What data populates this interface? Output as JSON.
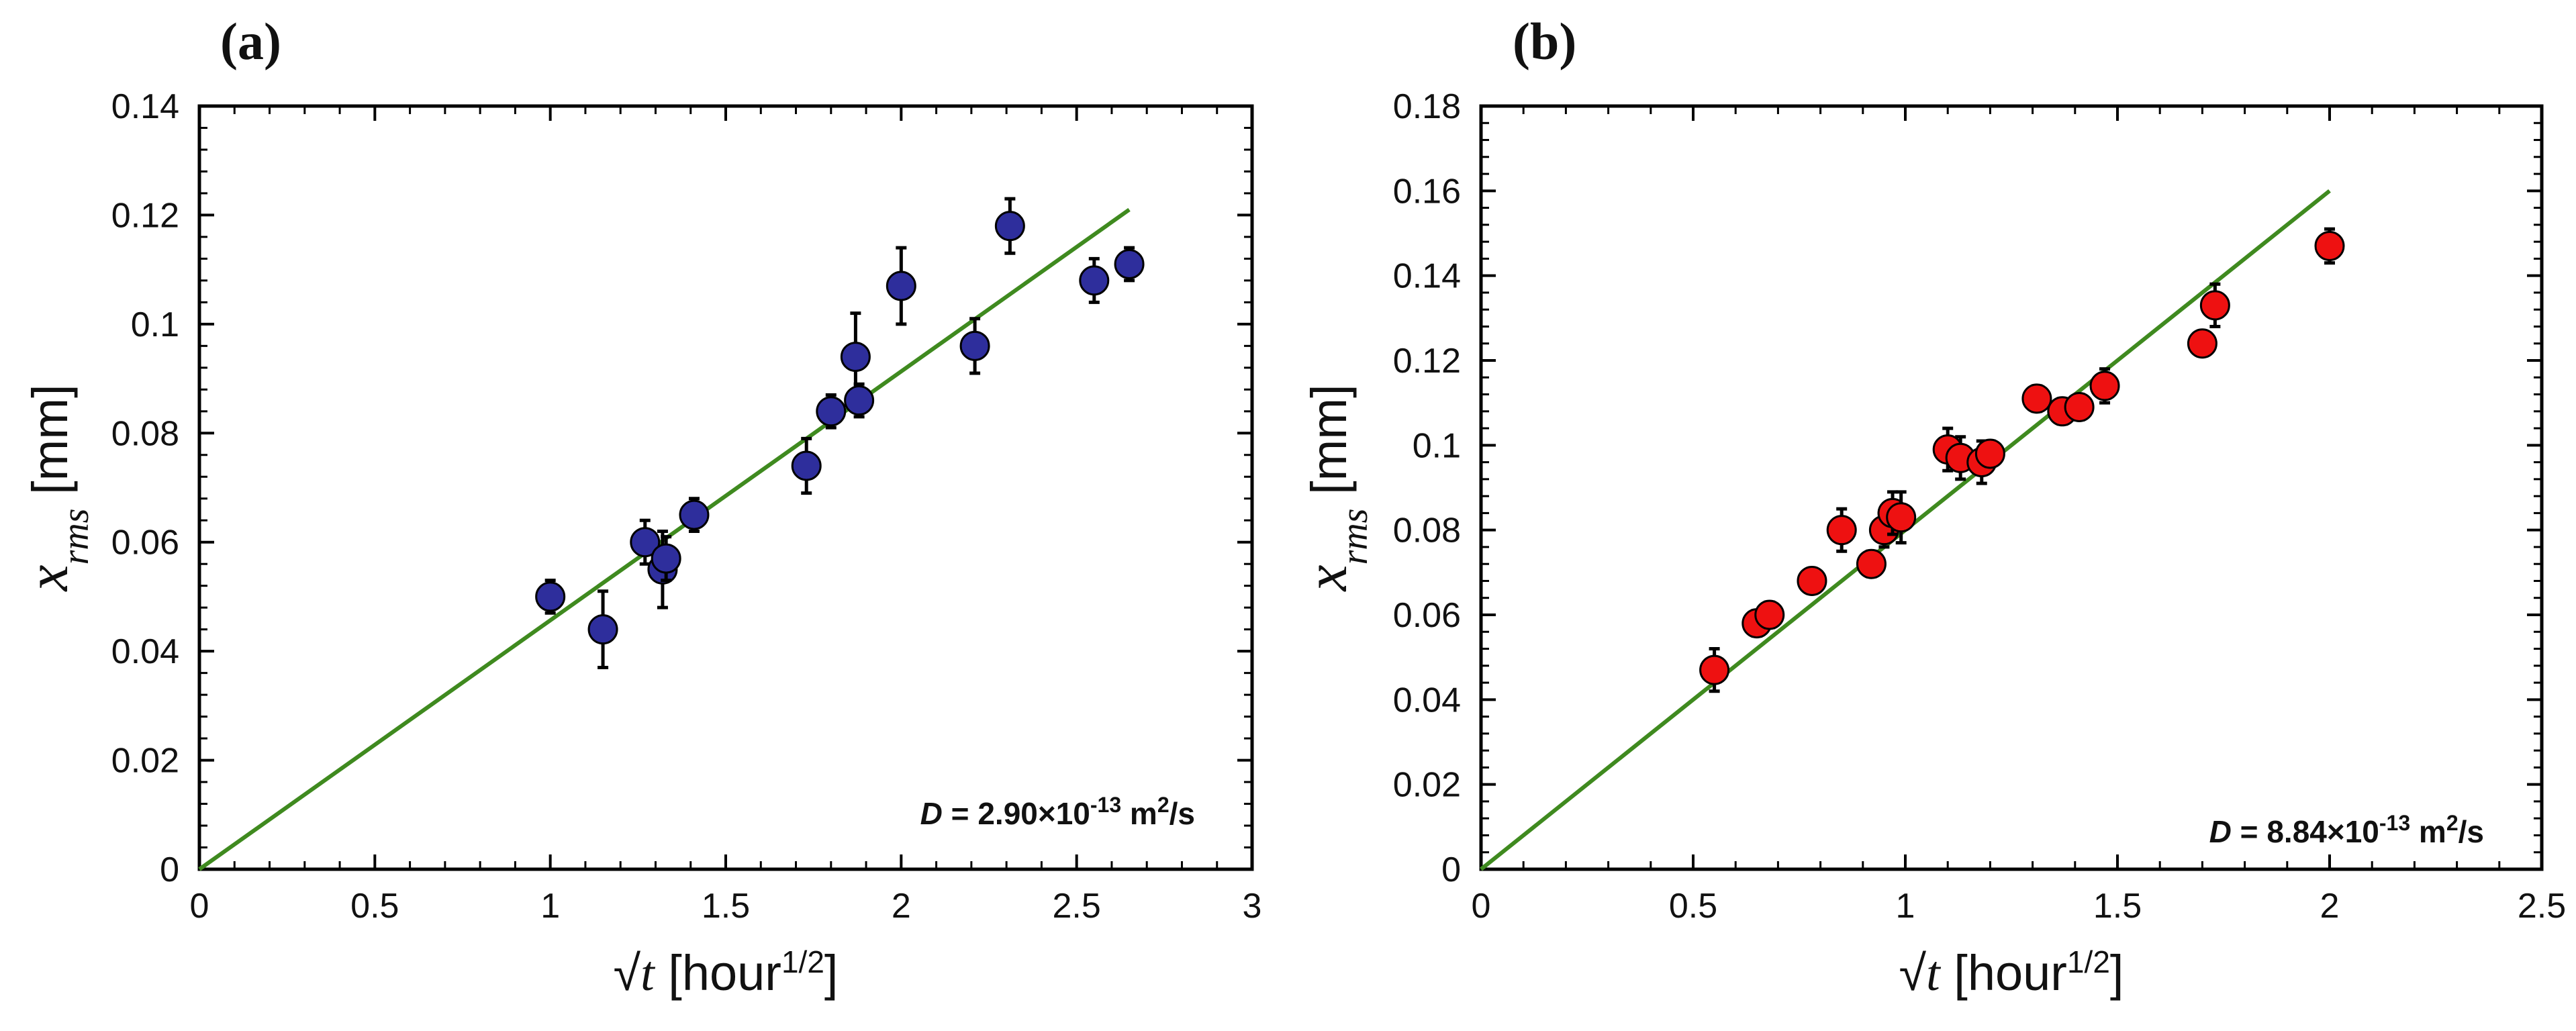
{
  "chart_data": [
    {
      "type": "scatter",
      "panel_label": "(a)",
      "xlabel": {
        "radical": "√",
        "var": "t",
        "pre": " [hour",
        "sup": "1/2",
        "post": "]"
      },
      "ylabel": {
        "var": "x",
        "sub": "rms",
        "unit": " [mm]"
      },
      "xlim": [
        0,
        3
      ],
      "ylim": [
        0,
        0.14
      ],
      "xticks": [
        "0",
        "0.5",
        "1",
        "1.5",
        "2",
        "2.5",
        "3"
      ],
      "yticks": [
        "0",
        "0.02",
        "0.04",
        "0.06",
        "0.08",
        "0.1",
        "0.12",
        "0.14"
      ],
      "grid": false,
      "marker_color": "#2e2e9c",
      "fit_color": "#3f8a1f",
      "fit_line": {
        "x": [
          0,
          2.65
        ],
        "y": [
          0,
          0.121
        ]
      },
      "annotation": {
        "var": "D",
        "text": " = 2.90×10",
        "exp": "-13",
        "unit": " m",
        "unit_exp": "2",
        "tail": "/s"
      },
      "series": [
        {
          "x": [
            1.0,
            1.15,
            1.27,
            1.32,
            1.33,
            1.41,
            1.73,
            1.8,
            1.87,
            1.88,
            2.0,
            2.21,
            2.31,
            2.55,
            2.65
          ],
          "y": [
            0.05,
            0.044,
            0.06,
            0.055,
            0.057,
            0.065,
            0.074,
            0.084,
            0.094,
            0.086,
            0.107,
            0.096,
            0.118,
            0.108,
            0.111
          ],
          "err": [
            0.003,
            0.007,
            0.004,
            0.007,
            0.004,
            0.003,
            0.005,
            0.003,
            0.008,
            0.003,
            0.007,
            0.005,
            0.005,
            0.004,
            0.003
          ]
        }
      ]
    },
    {
      "type": "scatter",
      "panel_label": "(b)",
      "xlabel": {
        "radical": "√",
        "var": "t",
        "pre": " [hour",
        "sup": "1/2",
        "post": "]"
      },
      "ylabel": {
        "var": "x",
        "sub": "rms",
        "unit": " [mm]"
      },
      "xlim": [
        0,
        2.5
      ],
      "ylim": [
        0,
        0.18
      ],
      "xticks": [
        "0",
        "0.5",
        "1",
        "1.5",
        "2",
        "2.5"
      ],
      "yticks": [
        "0",
        "0.02",
        "0.04",
        "0.06",
        "0.08",
        "0.1",
        "0.12",
        "0.14",
        "0.16",
        "0.18"
      ],
      "grid": false,
      "marker_color": "#ee1111",
      "fit_color": "#3f8a1f",
      "fit_line": {
        "x": [
          0,
          2.0
        ],
        "y": [
          0,
          0.16
        ]
      },
      "annotation": {
        "var": "D",
        "text": " = 8.84×10",
        "exp": "-13",
        "unit": " m",
        "unit_exp": "2",
        "tail": "/s"
      },
      "series": [
        {
          "x": [
            0.55,
            0.65,
            0.68,
            0.78,
            0.85,
            0.92,
            0.95,
            0.97,
            0.99,
            1.1,
            1.13,
            1.18,
            1.2,
            1.31,
            1.37,
            1.41,
            1.47,
            1.7,
            1.73,
            2.0
          ],
          "y": [
            0.047,
            0.058,
            0.06,
            0.068,
            0.08,
            0.072,
            0.08,
            0.084,
            0.083,
            0.099,
            0.097,
            0.096,
            0.098,
            0.111,
            0.108,
            0.109,
            0.114,
            0.124,
            0.133,
            0.147
          ],
          "err": [
            0.005,
            0.003,
            0.003,
            0.002,
            0.005,
            0.003,
            0.004,
            0.005,
            0.006,
            0.005,
            0.005,
            0.005,
            0.003,
            0.003,
            0.003,
            0.003,
            0.004,
            0.002,
            0.005,
            0.004
          ]
        }
      ]
    }
  ]
}
